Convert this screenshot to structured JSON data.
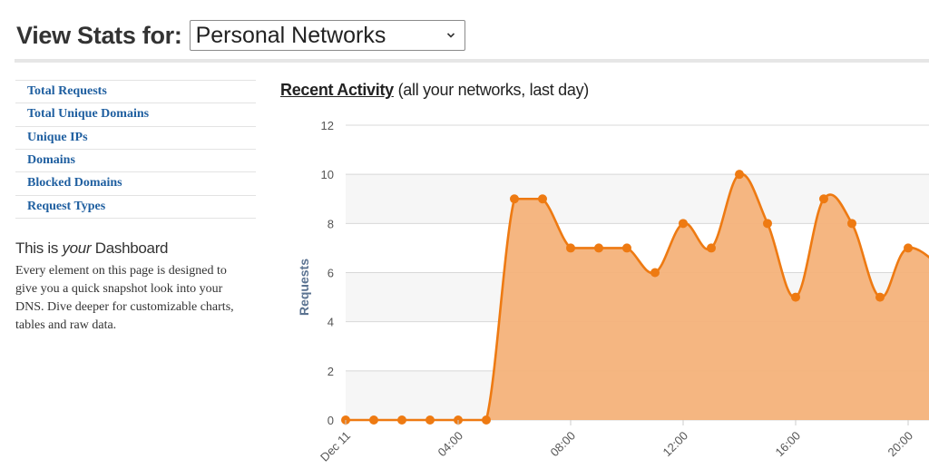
{
  "header": {
    "label": "View Stats for:",
    "network_select": {
      "value": "Personal Networks"
    }
  },
  "sidebar": {
    "items": [
      {
        "label": "Total Requests"
      },
      {
        "label": "Total Unique Domains"
      },
      {
        "label": "Unique IPs"
      },
      {
        "label": "Domains"
      },
      {
        "label": "Blocked Domains"
      },
      {
        "label": "Request Types"
      }
    ],
    "dashboard": {
      "title_pre": "This is ",
      "title_em": "your",
      "title_post": " Dashboard",
      "description": "Every element on this page is designed to give you a quick snapshot look into your DNS. Dive deeper for customizable charts, tables and raw data."
    }
  },
  "chart_section": {
    "heading_link": "Recent Activity",
    "heading_suffix": " (all your networks, last day)"
  },
  "colors": {
    "line": "#ee7a12",
    "area": "#f4b27a",
    "link": "#1f5fa0",
    "axis_title": "#5b7391"
  },
  "chart_data": {
    "type": "area",
    "ylabel": "Requests",
    "ylim": [
      0,
      12
    ],
    "y_ticks": [
      0,
      2,
      4,
      6,
      8,
      10,
      12
    ],
    "x_tick_labels": [
      {
        "hour": 0,
        "label": "Dec 11"
      },
      {
        "hour": 4,
        "label": "04:00"
      },
      {
        "hour": 8,
        "label": "08:00"
      },
      {
        "hour": 12,
        "label": "12:00"
      },
      {
        "hour": 16,
        "label": "16:00"
      },
      {
        "hour": 20,
        "label": "20:00"
      }
    ],
    "series": [
      {
        "hours": [
          0,
          1,
          2,
          3,
          4,
          5,
          6,
          7,
          8,
          9,
          10,
          11,
          12,
          13,
          14,
          15,
          16,
          17,
          18,
          19,
          20
        ],
        "values": [
          0,
          0,
          0,
          0,
          0,
          0,
          9,
          9,
          7,
          7,
          7,
          6,
          8,
          7,
          10,
          8,
          5,
          9,
          8,
          5,
          7
        ]
      }
    ],
    "grid": true,
    "legend": "none"
  }
}
